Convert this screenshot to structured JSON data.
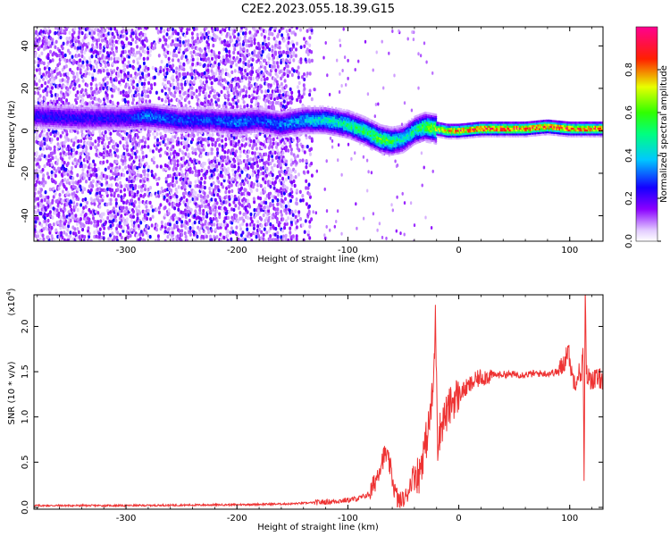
{
  "title": "C2E2.2023.055.18.39.G15",
  "chart_data": [
    {
      "type": "heatmap",
      "xlabel": "Height of straight line (km)",
      "ylabel": "Frequency (Hz)",
      "xlim": [
        -383,
        130
      ],
      "ylim": [
        -52,
        49
      ],
      "xticks": [
        -300,
        -200,
        -100,
        0,
        100
      ],
      "xtick_labels": [
        "-300",
        "-200",
        "-100",
        "0",
        "100"
      ],
      "yticks": [
        -40,
        -20,
        0,
        20,
        40
      ],
      "ytick_labels": [
        "-40",
        "-20",
        "0",
        "20",
        "40"
      ],
      "colorbar": {
        "label": "Normalized spectral amplitude",
        "range": [
          0,
          1
        ],
        "ticks": [
          0.0,
          0.2,
          0.4,
          0.6,
          0.8
        ],
        "tick_labels": [
          "0.0",
          "0.2",
          "0.4",
          "0.6",
          "0.8"
        ],
        "colors": [
          "#ffffff",
          "#e8d5ff",
          "#8000ff",
          "#0000ff",
          "#00ffff",
          "#00ff00",
          "#ffff00",
          "#ff0000",
          "#ff00a0"
        ]
      },
      "ridge": {
        "x": [
          -380,
          -340,
          -300,
          -280,
          -250,
          -220,
          -200,
          -180,
          -160,
          -140,
          -120,
          -100,
          -85,
          -70,
          -60,
          -50,
          -40,
          -30,
          -20,
          -10,
          0,
          20,
          40,
          60,
          80,
          100,
          110,
          130
        ],
        "y": [
          7,
          6,
          6,
          7,
          5,
          5,
          4,
          5,
          3,
          5,
          5,
          3,
          0,
          -4,
          -5,
          -4,
          0,
          2,
          1,
          0,
          0,
          1,
          1,
          1,
          2,
          1,
          1,
          1
        ],
        "amplitude": [
          0.25,
          0.25,
          0.25,
          0.35,
          0.3,
          0.3,
          0.35,
          0.3,
          0.35,
          0.4,
          0.45,
          0.5,
          0.55,
          0.6,
          0.55,
          0.45,
          0.5,
          0.6,
          0.7,
          0.8,
          0.85,
          0.9,
          0.9,
          0.9,
          0.85,
          0.9,
          0.85,
          0.9
        ]
      },
      "scatter_noise_xmax": -133
    },
    {
      "type": "line",
      "xlabel": "Height of straight line (km)",
      "ylabel": "SNR (10 * v/v)",
      "scale_label": "(x10",
      "scale_exp": "4",
      "scale_close": ")",
      "xlim": [
        -383,
        130
      ],
      "ylim": [
        -0.02,
        2.35
      ],
      "xticks": [
        -300,
        -200,
        -100,
        0,
        100
      ],
      "xtick_labels": [
        "-300",
        "-200",
        "-100",
        "0",
        "100"
      ],
      "yticks": [
        0.0,
        0.5,
        1.0,
        1.5,
        2.0
      ],
      "ytick_labels": [
        "0.0",
        "0.5",
        "1.0",
        "1.5",
        "2.0"
      ],
      "color": "#ee3333",
      "series": [
        {
          "x": [
            -383,
            -350,
            -300,
            -250,
            -200,
            -150,
            -120,
            -100,
            -90,
            -80,
            -75,
            -70,
            -66,
            -62,
            -58,
            -55,
            -52,
            -48,
            -44,
            -40,
            -36,
            -33,
            -30,
            -27,
            -25,
            -23,
            -22,
            -21,
            -20,
            -19,
            -18,
            -16,
            -13,
            -10,
            -7,
            -4,
            0,
            5,
            10,
            15,
            20,
            30,
            40,
            50,
            60,
            70,
            80,
            90,
            95,
            98,
            100,
            102,
            105,
            108,
            110,
            112,
            113,
            114,
            115,
            116,
            118,
            120,
            125,
            130
          ],
          "y": [
            0.02,
            0.02,
            0.02,
            0.025,
            0.03,
            0.04,
            0.06,
            0.08,
            0.1,
            0.15,
            0.3,
            0.5,
            0.6,
            0.45,
            0.2,
            0.08,
            0.05,
            0.1,
            0.25,
            0.4,
            0.35,
            0.55,
            0.7,
            0.9,
            1.1,
            1.3,
            1.7,
            2.1,
            1.5,
            0.7,
            0.8,
            0.9,
            1.0,
            1.05,
            1.15,
            1.2,
            1.25,
            1.3,
            1.35,
            1.4,
            1.44,
            1.46,
            1.47,
            1.47,
            1.47,
            1.48,
            1.48,
            1.5,
            1.6,
            1.75,
            1.65,
            1.45,
            1.4,
            1.5,
            1.45,
            1.7,
            0.3,
            2.35,
            1.5,
            1.45,
            1.42,
            1.42,
            1.42,
            1.42
          ]
        }
      ]
    }
  ]
}
